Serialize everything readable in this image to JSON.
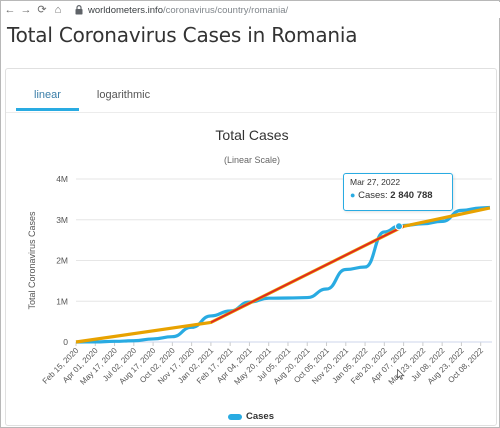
{
  "browser": {
    "back_icon": "arrow-left-icon",
    "forward_icon": "arrow-right-icon",
    "reload_icon": "reload-icon",
    "home_icon": "home-icon",
    "url_host": "worldometers.info",
    "url_path": "/coronavirus/country/romania/"
  },
  "page": {
    "title": "Total Coronavirus Cases in Romania"
  },
  "tabs": [
    {
      "label": "linear",
      "active": true
    },
    {
      "label": "logarithmic",
      "active": false
    }
  ],
  "colors": {
    "series": "#29abe2",
    "trend_red": "#e02424",
    "trend_orange": "#e8a200",
    "tab_accent": "#29abe2"
  },
  "tooltip": {
    "date": "Mar 27, 2022",
    "label": "Cases:",
    "value": "2 840 788"
  },
  "chart_data": {
    "type": "line",
    "title": "Total Cases",
    "subtitle": "(Linear Scale)",
    "ylabel": "Total Coronavirus Cases",
    "xlabel": "",
    "ylim": [
      0,
      4000000
    ],
    "y_ticks": [
      {
        "value": 0,
        "label": "0"
      },
      {
        "value": 1000000,
        "label": "1M"
      },
      {
        "value": 2000000,
        "label": "2M"
      },
      {
        "value": 3000000,
        "label": "3M"
      },
      {
        "value": 4000000,
        "label": "4M"
      }
    ],
    "x_tick_labels": [
      "Feb 15, 2020",
      "Apr 01, 2020",
      "May 17, 2020",
      "Jul 02, 2020",
      "Aug 17, 2020",
      "Oct 02, 2020",
      "Nov 17, 2020",
      "Jan 02, 2021",
      "Feb 17, 2021",
      "Apr 04, 2021",
      "May 20, 2021",
      "Jul 05, 2021",
      "Aug 20, 2021",
      "Oct 05, 2021",
      "Nov 20, 2021",
      "Jan 05, 2022",
      "Feb 20, 2022",
      "Apr 07, 2022",
      "May 23, 2022",
      "Jul 08, 2022",
      "Aug 23, 2022",
      "Oct 08, 2022"
    ],
    "grid": true,
    "legend": "bottom-center",
    "series": [
      {
        "name": "Cases",
        "x": [
          "Feb 15, 2020",
          "Apr 01, 2020",
          "May 17, 2020",
          "Jul 02, 2020",
          "Aug 17, 2020",
          "Oct 02, 2020",
          "Nov 17, 2020",
          "Jan 02, 2021",
          "Feb 17, 2021",
          "Apr 04, 2021",
          "May 20, 2021",
          "Jul 05, 2021",
          "Aug 20, 2021",
          "Oct 05, 2021",
          "Nov 20, 2021",
          "Jan 05, 2022",
          "Feb 20, 2022",
          "Mar 27, 2022",
          "Apr 07, 2022",
          "May 23, 2022",
          "Jul 08, 2022",
          "Aug 23, 2022",
          "Oct 08, 2022",
          "Oct 30, 2022"
        ],
        "values": [
          0,
          3000,
          17000,
          30000,
          75000,
          130000,
          360000,
          640000,
          760000,
          980000,
          1075000,
          1080000,
          1090000,
          1300000,
          1780000,
          1840000,
          2700000,
          2840788,
          2860000,
          2900000,
          2960000,
          3230000,
          3290000,
          3300000
        ]
      }
    ],
    "trend_lines": [
      {
        "x": [
          "Feb 15, 2020",
          "Jan 02, 2021",
          "Apr 07, 2022",
          "Oct 30, 2022"
        ],
        "values": [
          0,
          480000,
          2840000,
          3290000
        ]
      },
      {
        "x": [
          "Jan 02, 2021",
          "Apr 07, 2022"
        ],
        "values": [
          480000,
          2840000
        ]
      }
    ],
    "highlight_point": {
      "x": "Mar 27, 2022",
      "value": 2840788
    }
  },
  "legend": {
    "label": "Cases"
  }
}
